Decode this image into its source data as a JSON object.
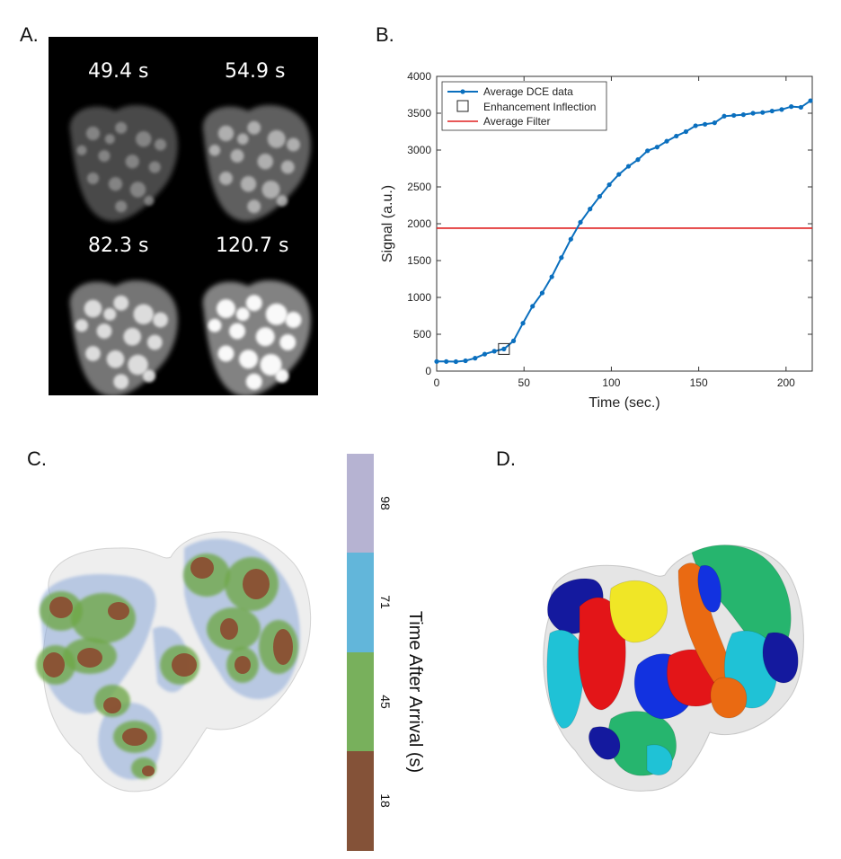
{
  "panels": {
    "a": {
      "label": "A.",
      "time_labels": [
        "49.4 s",
        "54.9 s",
        "82.3 s",
        "120.7 s"
      ],
      "frame_brightness": [
        0.35,
        0.6,
        0.85,
        1.0
      ]
    },
    "b": {
      "label": "B."
    },
    "c": {
      "label": "C.",
      "colorbar": {
        "title": "Time After Arrival (s)",
        "ticks": [
          "98",
          "71",
          "45",
          "18"
        ],
        "colors": [
          "#b6b3d2",
          "#62b6da",
          "#78b05c",
          "#845238"
        ]
      }
    },
    "d": {
      "label": "D.",
      "segment_colors": [
        "#14199e",
        "#1fc2d6",
        "#e31518",
        "#f0e626",
        "#26b56e",
        "#ea6a12",
        "#72c92c",
        "#1232e0"
      ]
    }
  },
  "chart_data": {
    "type": "line",
    "xlabel": "Time (sec.)",
    "ylabel": "Signal (a.u.)",
    "xlim": [
      0,
      215
    ],
    "ylim": [
      0,
      4000
    ],
    "xticks": [
      0,
      50,
      100,
      150,
      200
    ],
    "yticks": [
      0,
      500,
      1000,
      1500,
      2000,
      2500,
      3000,
      3500,
      4000
    ],
    "legend_position": "top-left",
    "series": [
      {
        "name": "Average DCE data",
        "color": "#0a6fbe",
        "x": [
          0,
          5.5,
          11,
          16.5,
          22,
          27.5,
          33,
          38.5,
          44,
          49.4,
          54.9,
          60.4,
          65.9,
          71.4,
          76.8,
          82.3,
          87.8,
          93.3,
          98.8,
          104.3,
          109.8,
          115.2,
          120.7,
          126.2,
          131.7,
          137.2,
          142.7,
          148.2,
          153.6,
          159.1,
          164.6,
          170.1,
          175.6,
          181.1,
          186.6,
          192,
          197.5,
          203,
          208.5,
          214
        ],
        "y": [
          130,
          130,
          128,
          140,
          175,
          230,
          270,
          300,
          410,
          650,
          880,
          1060,
          1280,
          1540,
          1790,
          2020,
          2200,
          2370,
          2530,
          2670,
          2780,
          2870,
          2990,
          3040,
          3120,
          3190,
          3250,
          3330,
          3350,
          3370,
          3460,
          3470,
          3480,
          3500,
          3510,
          3530,
          3550,
          3590,
          3580,
          3670
        ]
      },
      {
        "name": "Average Filter",
        "color": "#e02020",
        "x": [
          0,
          215
        ],
        "y": [
          1940,
          1940
        ]
      }
    ],
    "markers": [
      {
        "name": "Enhancement Inflection",
        "x": 38.5,
        "y": 300
      }
    ]
  }
}
